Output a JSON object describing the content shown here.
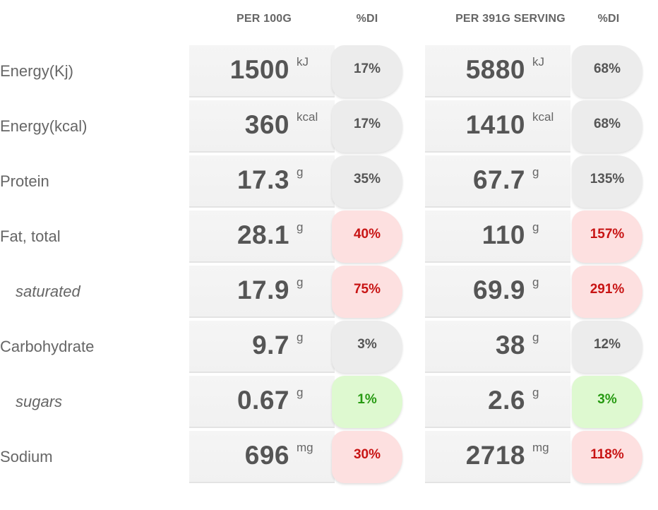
{
  "headers": {
    "per100": "PER 100G",
    "di1": "%DI",
    "perServing": "PER 391G SERVING",
    "di2": "%DI"
  },
  "rows": [
    {
      "label": "Energy(Kj)",
      "sub": false,
      "v1": "1500",
      "u1": "kJ",
      "p1": "17%",
      "s1": "neutral",
      "v2": "5880",
      "u2": "kJ",
      "p2": "68%",
      "s2": "neutral"
    },
    {
      "label": "Energy(kcal)",
      "sub": false,
      "v1": "360",
      "u1": "kcal",
      "p1": "17%",
      "s1": "neutral",
      "v2": "1410",
      "u2": "kcal",
      "p2": "68%",
      "s2": "neutral"
    },
    {
      "label": "Protein",
      "sub": false,
      "v1": "17.3",
      "u1": "g",
      "p1": "35%",
      "s1": "neutral",
      "v2": "67.7",
      "u2": "g",
      "p2": "135%",
      "s2": "neutral"
    },
    {
      "label": "Fat, total",
      "sub": false,
      "v1": "28.1",
      "u1": "g",
      "p1": "40%",
      "s1": "red",
      "v2": "110",
      "u2": "g",
      "p2": "157%",
      "s2": "red"
    },
    {
      "label": "saturated",
      "sub": true,
      "v1": "17.9",
      "u1": "g",
      "p1": "75%",
      "s1": "red",
      "v2": "69.9",
      "u2": "g",
      "p2": "291%",
      "s2": "red"
    },
    {
      "label": "Carbohydrate",
      "sub": false,
      "v1": "9.7",
      "u1": "g",
      "p1": "3%",
      "s1": "neutral",
      "v2": "38",
      "u2": "g",
      "p2": "12%",
      "s2": "neutral"
    },
    {
      "label": "sugars",
      "sub": true,
      "v1": "0.67",
      "u1": "g",
      "p1": "1%",
      "s1": "green",
      "v2": "2.6",
      "u2": "g",
      "p2": "3%",
      "s2": "green"
    },
    {
      "label": "Sodium",
      "sub": false,
      "v1": "696",
      "u1": "mg",
      "p1": "30%",
      "s1": "red",
      "v2": "2718",
      "u2": "mg",
      "p2": "118%",
      "s2": "red"
    }
  ],
  "colors": {
    "red_bg": "#fde0e0",
    "red_text": "#c81414",
    "green_bg": "#def9d0",
    "green_text": "#279a12",
    "neutral_bg": "#ececec"
  }
}
